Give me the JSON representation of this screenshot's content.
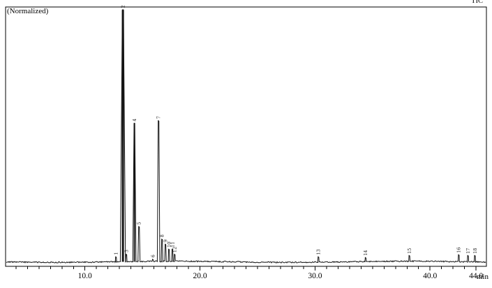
{
  "colors": {
    "background": "#ffffff",
    "frame": "#000000",
    "trace": "#141414",
    "peak_label": "#1a1a1a"
  },
  "chart_data": {
    "type": "line",
    "kind": "chromatogram",
    "title": "(Normalized)",
    "series_name": "TIC",
    "xlabel": "min",
    "ylabel": "",
    "xlim": [
      3.1,
      44.9
    ],
    "ylim": [
      0,
      104
    ],
    "x_tick_labels": [
      "10.0",
      "20.0",
      "30.0",
      "40.0",
      "44.0"
    ],
    "minor_tick_interval_min": 1,
    "grid": false,
    "legend_position": "none",
    "baseline_noise_pct": 0.5,
    "peaks": [
      {
        "label": "1",
        "rt_min": 12.7,
        "intensity_pct": 2,
        "width_min": 0.1
      },
      {
        "label": "2",
        "rt_min": 13.3,
        "intensity_pct": 100,
        "width_min": 0.45,
        "saturated": true
      },
      {
        "label": "3",
        "rt_min": 13.6,
        "intensity_pct": 3,
        "width_min": 0.1
      },
      {
        "label": "4",
        "rt_min": 14.3,
        "intensity_pct": 55,
        "width_min": 0.28,
        "saturated": true
      },
      {
        "label": "5",
        "rt_min": 14.7,
        "intensity_pct": 14,
        "width_min": 0.18
      },
      {
        "label": "6",
        "rt_min": 15.9,
        "intensity_pct": 1,
        "width_min": 0.1
      },
      {
        "label": "7",
        "rt_min": 16.4,
        "intensity_pct": 56,
        "width_min": 0.22
      },
      {
        "label": "8",
        "rt_min": 16.7,
        "intensity_pct": 9,
        "width_min": 0.14
      },
      {
        "label": "9",
        "rt_min": 17.0,
        "intensity_pct": 7,
        "width_min": 0.14
      },
      {
        "label": "10",
        "rt_min": 17.3,
        "intensity_pct": 5,
        "width_min": 0.12
      },
      {
        "label": "11",
        "rt_min": 17.6,
        "intensity_pct": 5,
        "width_min": 0.12
      },
      {
        "label": "12",
        "rt_min": 17.8,
        "intensity_pct": 3,
        "width_min": 0.1
      },
      {
        "label": "13",
        "rt_min": 30.3,
        "intensity_pct": 2,
        "width_min": 0.12
      },
      {
        "label": "14",
        "rt_min": 34.4,
        "intensity_pct": 1.7,
        "width_min": 0.12
      },
      {
        "label": "15",
        "rt_min": 38.2,
        "intensity_pct": 2.5,
        "width_min": 0.12
      },
      {
        "label": "16",
        "rt_min": 42.5,
        "intensity_pct": 2.8,
        "width_min": 0.12
      },
      {
        "label": "17",
        "rt_min": 43.3,
        "intensity_pct": 2.5,
        "width_min": 0.1
      },
      {
        "label": "18",
        "rt_min": 43.9,
        "intensity_pct": 2.5,
        "width_min": 0.1
      }
    ]
  }
}
